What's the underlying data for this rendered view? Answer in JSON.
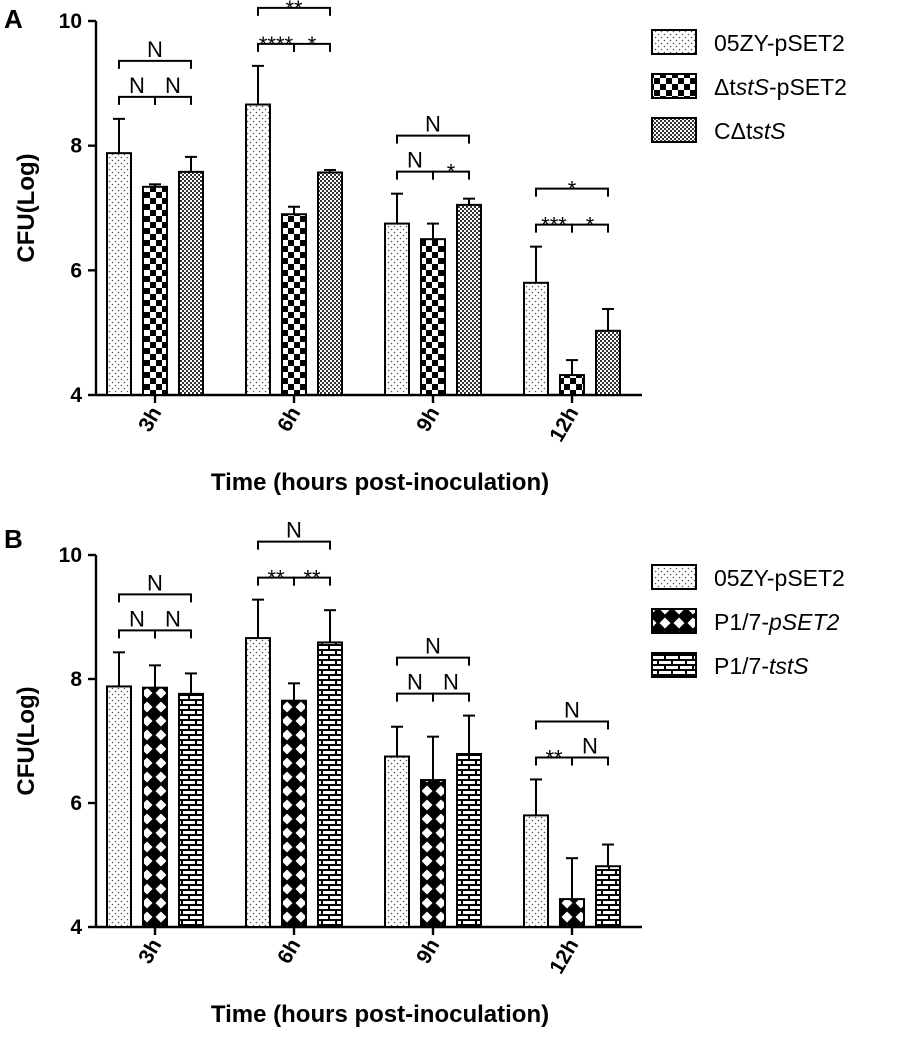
{
  "chart_data": [
    {
      "type": "bar",
      "panel_label": "A",
      "title": "",
      "xlabel": "Time (hours post-inoculation)",
      "ylabel": "CFU(Log)",
      "ylim": [
        4,
        10
      ],
      "yticks": [
        4,
        6,
        8,
        10
      ],
      "ytick_labels": [
        "4",
        "6",
        "8",
        "10"
      ],
      "categories": [
        "3h",
        "6h",
        "9h",
        "12h"
      ],
      "legend_position": "top-right",
      "series": [
        {
          "name_parts": [
            {
              "t": "05ZY-pSET2",
              "i": false
            }
          ],
          "pattern": "dots",
          "values": [
            7.88,
            8.66,
            6.75,
            5.8
          ],
          "errors": [
            0.55,
            0.62,
            0.48,
            0.58
          ]
        },
        {
          "name_parts": [
            {
              "t": "Δt",
              "i": false
            },
            {
              "t": "stS",
              "i": true
            },
            {
              "t": "-pSET2",
              "i": false
            }
          ],
          "pattern": "checker",
          "values": [
            7.34,
            6.9,
            6.5,
            4.32
          ],
          "errors": [
            0.04,
            0.12,
            0.25,
            0.24
          ]
        },
        {
          "name_parts": [
            {
              "t": "CΔt",
              "i": false
            },
            {
              "t": "stS",
              "i": true
            }
          ],
          "pattern": "dense",
          "values": [
            7.58,
            7.57,
            7.05,
            5.03
          ],
          "errors": [
            0.24,
            0.04,
            0.1,
            0.35
          ]
        }
      ],
      "significance": [
        {
          "cat": 0,
          "from": 0,
          "to": 2,
          "label": "N"
        },
        {
          "cat": 0,
          "from": 0,
          "to": 1,
          "label": "N"
        },
        {
          "cat": 0,
          "from": 1,
          "to": 2,
          "label": "N"
        },
        {
          "cat": 1,
          "from": 0,
          "to": 2,
          "label": "**"
        },
        {
          "cat": 1,
          "from": 0,
          "to": 1,
          "label": "****"
        },
        {
          "cat": 1,
          "from": 1,
          "to": 2,
          "label": "*"
        },
        {
          "cat": 2,
          "from": 0,
          "to": 2,
          "label": "N"
        },
        {
          "cat": 2,
          "from": 0,
          "to": 1,
          "label": "N"
        },
        {
          "cat": 2,
          "from": 1,
          "to": 2,
          "label": "*"
        },
        {
          "cat": 3,
          "from": 0,
          "to": 2,
          "label": "*"
        },
        {
          "cat": 3,
          "from": 0,
          "to": 1,
          "label": "***"
        },
        {
          "cat": 3,
          "from": 1,
          "to": 2,
          "label": "*"
        }
      ]
    },
    {
      "type": "bar",
      "panel_label": "B",
      "title": "",
      "xlabel": "Time (hours post-inoculation)",
      "ylabel": "CFU(Log)",
      "ylim": [
        4,
        10
      ],
      "yticks": [
        4,
        6,
        8,
        10
      ],
      "ytick_labels": [
        "4",
        "6",
        "8",
        "10"
      ],
      "categories": [
        "3h",
        "6h",
        "9h",
        "12h"
      ],
      "legend_position": "top-right",
      "series": [
        {
          "name_parts": [
            {
              "t": "05ZY-pSET2",
              "i": false
            }
          ],
          "pattern": "dots",
          "values": [
            7.88,
            8.66,
            6.75,
            5.8
          ],
          "errors": [
            0.55,
            0.62,
            0.48,
            0.58
          ]
        },
        {
          "name_parts": [
            {
              "t": "P1/7-",
              "i": false
            },
            {
              "t": "pSET2",
              "i": true
            }
          ],
          "pattern": "diamond",
          "values": [
            7.86,
            7.65,
            6.37,
            4.45
          ],
          "errors": [
            0.36,
            0.28,
            0.7,
            0.66
          ]
        },
        {
          "name_parts": [
            {
              "t": "P1/7-",
              "i": false
            },
            {
              "t": "tstS",
              "i": true
            }
          ],
          "pattern": "brick",
          "values": [
            7.76,
            8.59,
            6.79,
            4.98
          ],
          "errors": [
            0.33,
            0.52,
            0.62,
            0.35
          ]
        }
      ],
      "significance": [
        {
          "cat": 0,
          "from": 0,
          "to": 2,
          "label": "N"
        },
        {
          "cat": 0,
          "from": 0,
          "to": 1,
          "label": "N"
        },
        {
          "cat": 0,
          "from": 1,
          "to": 2,
          "label": "N"
        },
        {
          "cat": 1,
          "from": 0,
          "to": 2,
          "label": "N"
        },
        {
          "cat": 1,
          "from": 0,
          "to": 1,
          "label": "**"
        },
        {
          "cat": 1,
          "from": 1,
          "to": 2,
          "label": "**"
        },
        {
          "cat": 2,
          "from": 0,
          "to": 2,
          "label": "N"
        },
        {
          "cat": 2,
          "from": 0,
          "to": 1,
          "label": "N"
        },
        {
          "cat": 2,
          "from": 1,
          "to": 2,
          "label": "N"
        },
        {
          "cat": 3,
          "from": 0,
          "to": 2,
          "label": "N"
        },
        {
          "cat": 3,
          "from": 0,
          "to": 1,
          "label": "**"
        },
        {
          "cat": 3,
          "from": 1,
          "to": 2,
          "label": "N"
        }
      ]
    }
  ]
}
